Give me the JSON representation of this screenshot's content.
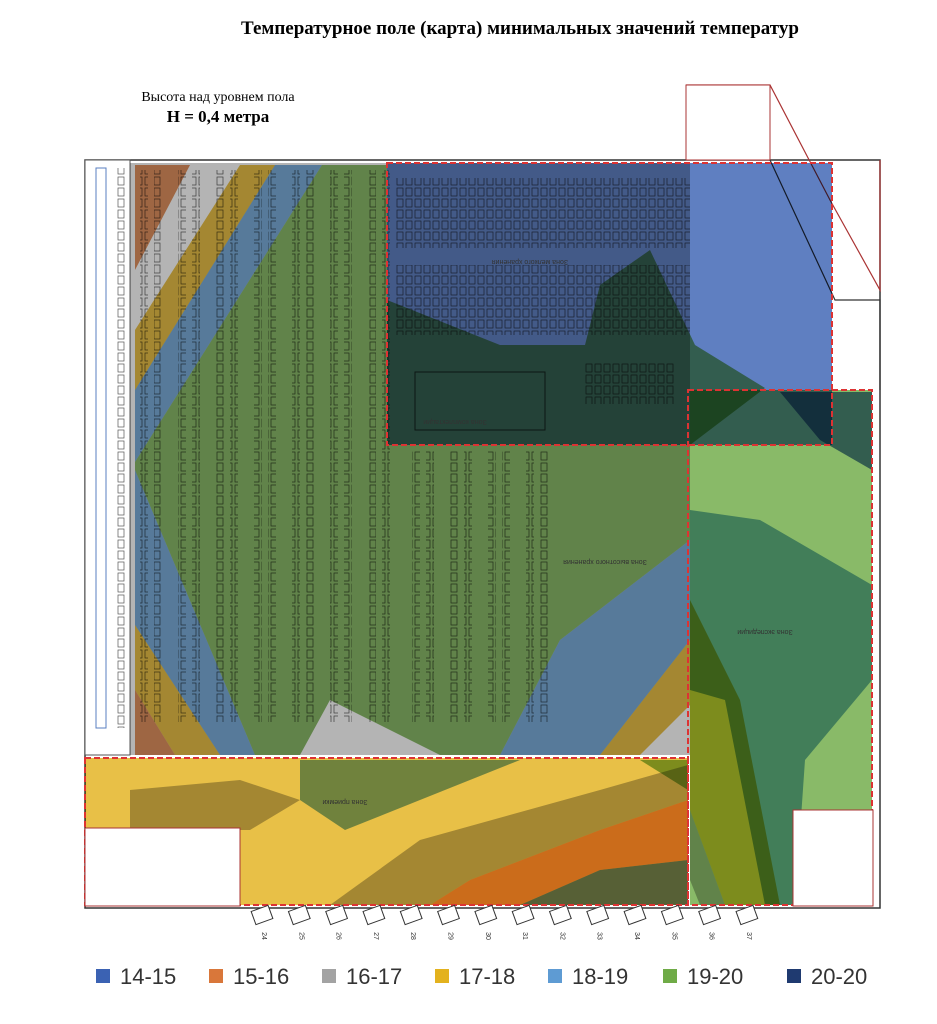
{
  "title": "Температурное поле (карта) минимальных значений температур",
  "subtitle": {
    "caption": "Высота над уровнем пола",
    "height": "H = 0,4 метра"
  },
  "zones": [
    "Зона мелкого хранения",
    "Зона комплектации",
    "Зона высотного хранения",
    "Зона экспедиции",
    "Зона приемки"
  ],
  "docks": [
    "24",
    "25",
    "26",
    "27",
    "28",
    "29",
    "30",
    "31",
    "32",
    "33",
    "34",
    "35",
    "36",
    "37"
  ],
  "legend": [
    {
      "label": "14-15",
      "color": "#3b62b3"
    },
    {
      "label": "15-16",
      "color": "#d9773a"
    },
    {
      "label": "16-17",
      "color": "#a3a3a3"
    },
    {
      "label": "17-18",
      "color": "#e3b21e"
    },
    {
      "label": "18-19",
      "color": "#5e9bd3"
    },
    {
      "label": "19-20",
      "color": "#6fab47"
    },
    {
      "label": "20-20",
      "color": "#1f3a70"
    }
  ]
}
